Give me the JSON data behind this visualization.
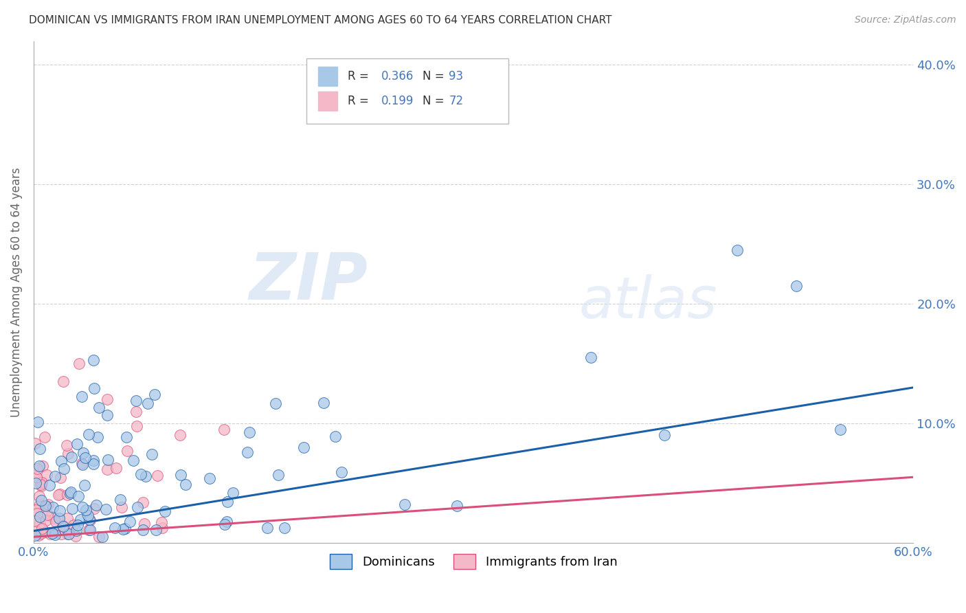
{
  "title": "DOMINICAN VS IMMIGRANTS FROM IRAN UNEMPLOYMENT AMONG AGES 60 TO 64 YEARS CORRELATION CHART",
  "source": "Source: ZipAtlas.com",
  "ylabel": "Unemployment Among Ages 60 to 64 years",
  "xlim": [
    0,
    0.6
  ],
  "ylim": [
    0,
    0.42
  ],
  "xticks": [
    0.0,
    0.1,
    0.2,
    0.3,
    0.4,
    0.5,
    0.6
  ],
  "xtick_labels": [
    "0.0%",
    "",
    "",
    "",
    "",
    "",
    "60.0%"
  ],
  "ytick_labels_right": [
    "",
    "10.0%",
    "20.0%",
    "30.0%",
    "40.0%"
  ],
  "yticks": [
    0.0,
    0.1,
    0.2,
    0.3,
    0.4
  ],
  "watermark_zip": "ZIP",
  "watermark_atlas": "atlas",
  "legend_r1_label": "R = ",
  "legend_r1_val": "0.366",
  "legend_n1_label": "  N = ",
  "legend_n1_val": "93",
  "legend_r2_label": "R =  ",
  "legend_r2_val": "0.199",
  "legend_n2_label": "  N = ",
  "legend_n2_val": "72",
  "dominicans_color": "#a8c8e8",
  "iran_color": "#f4b8c8",
  "line1_color": "#1a5fa8",
  "line2_color": "#d94f7a",
  "dominicans_label": "Dominicans",
  "iran_label": "Immigrants from Iran",
  "background_color": "#ffffff",
  "grid_color": "#cccccc",
  "title_color": "#333333",
  "axis_label_color": "#666666",
  "tick_color": "#4477bb",
  "legend_r_color": "#333333",
  "legend_val_color": "#4477bb",
  "n_dominicans": 93,
  "n_iran": 72,
  "line1_y0": 0.01,
  "line1_y1": 0.13,
  "line2_y0": 0.005,
  "line2_y1": 0.055
}
